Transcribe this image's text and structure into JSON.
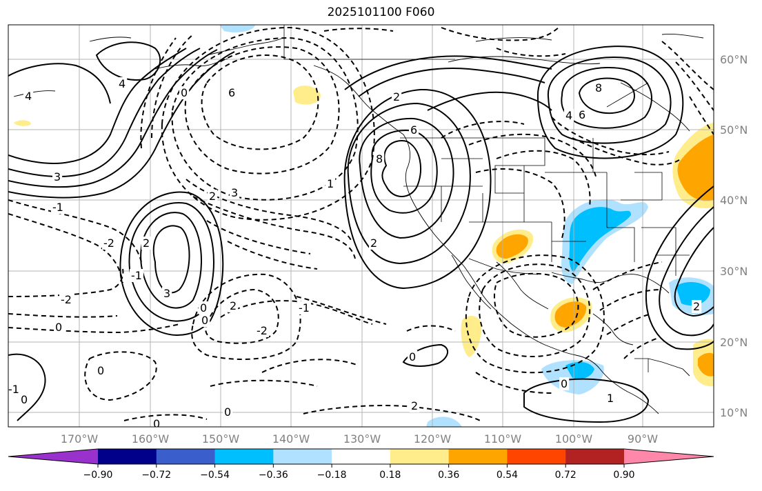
{
  "title": "2025101100 F060",
  "map": {
    "lat_labels": [
      "60°N",
      "50°N",
      "40°N",
      "30°N",
      "20°N",
      "10°N"
    ],
    "lon_labels": [
      "170°W",
      "160°W",
      "150°W",
      "140°W",
      "130°W",
      "120°W",
      "110°W",
      "100°W",
      "90°W"
    ]
  },
  "contour_labels": [
    "4",
    "4",
    "-1",
    "0",
    "6",
    "3",
    "1",
    "2",
    "2",
    "3",
    "8",
    "6",
    "2",
    "8",
    "4",
    "6",
    "-2",
    "2",
    "3",
    "0",
    "-1",
    "0",
    "2",
    "-2",
    "-1",
    "-2",
    "0",
    "2",
    "0",
    "-1",
    "0",
    "0",
    "0",
    "0",
    "1",
    "2",
    "0"
  ],
  "colorbar": {
    "colors": [
      "#9932cc",
      "#00008b",
      "#3a5fcd",
      "#00bfff",
      "#b0e2ff",
      "#ffffff",
      "#ffec8b",
      "#ffa500",
      "#ff4500",
      "#b22222",
      "#ff88aa"
    ],
    "tick_labels": [
      "−0.90",
      "−0.72",
      "−0.54",
      "−0.36",
      "−0.18",
      "0.18",
      "0.36",
      "0.54",
      "0.72",
      "0.90"
    ]
  }
}
